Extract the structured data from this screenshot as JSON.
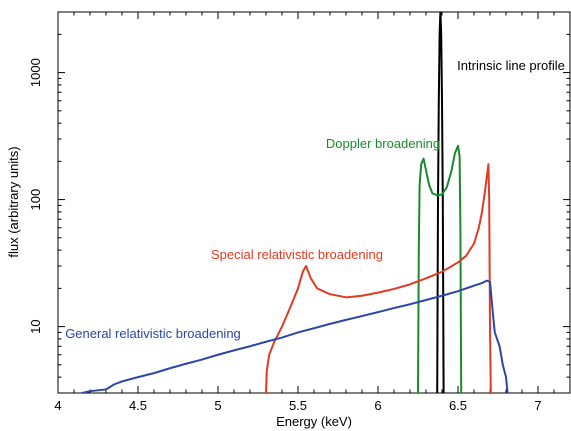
{
  "chart_data": {
    "type": "line",
    "title": "",
    "xlabel": "Energy (keV)",
    "ylabel": "flux (arbitrary units)",
    "xlim": [
      4,
      7.2
    ],
    "ylim": [
      3,
      3000
    ],
    "yscale": "log",
    "x_ticks": [
      4,
      4.5,
      5,
      5.5,
      6,
      6.5,
      7
    ],
    "x_tick_labels": [
      "4",
      "4.5",
      "5",
      "5.5",
      "6",
      "6.5",
      "7"
    ],
    "y_ticks": [
      10,
      100,
      1000
    ],
    "y_tick_labels": [
      "10",
      "100",
      "1000"
    ],
    "grid": false,
    "series": [
      {
        "name": "Intrinsic line profile",
        "color": "#000000",
        "label_pos": "upper-right",
        "points": [
          [
            6.37,
            3
          ],
          [
            6.375,
            100
          ],
          [
            6.38,
            600
          ],
          [
            6.385,
            2000
          ],
          [
            6.39,
            3000
          ],
          [
            6.395,
            2000
          ],
          [
            6.4,
            600
          ],
          [
            6.405,
            100
          ],
          [
            6.41,
            3
          ]
        ]
      },
      {
        "name": "Doppler broadening",
        "color": "#1a8a2e",
        "label_pos": "upper-center",
        "points": [
          [
            6.25,
            3
          ],
          [
            6.255,
            40
          ],
          [
            6.26,
            130
          ],
          [
            6.27,
            190
          ],
          [
            6.285,
            210
          ],
          [
            6.3,
            170
          ],
          [
            6.32,
            130
          ],
          [
            6.34,
            112
          ],
          [
            6.37,
            108
          ],
          [
            6.4,
            110
          ],
          [
            6.43,
            125
          ],
          [
            6.46,
            170
          ],
          [
            6.48,
            230
          ],
          [
            6.5,
            265
          ],
          [
            6.51,
            220
          ],
          [
            6.515,
            60
          ],
          [
            6.52,
            3
          ]
        ]
      },
      {
        "name": "Special relativistic broadening",
        "color": "#e23a22",
        "label_pos": "middle-left",
        "points": [
          [
            5.3,
            3
          ],
          [
            5.305,
            4.5
          ],
          [
            5.32,
            6
          ],
          [
            5.35,
            7.5
          ],
          [
            5.4,
            10
          ],
          [
            5.45,
            14
          ],
          [
            5.5,
            20
          ],
          [
            5.53,
            27
          ],
          [
            5.55,
            30
          ],
          [
            5.58,
            24
          ],
          [
            5.62,
            20
          ],
          [
            5.7,
            18
          ],
          [
            5.8,
            17
          ],
          [
            5.9,
            17.5
          ],
          [
            6.0,
            18.5
          ],
          [
            6.1,
            19.8
          ],
          [
            6.2,
            21.5
          ],
          [
            6.3,
            24
          ],
          [
            6.4,
            27
          ],
          [
            6.5,
            32
          ],
          [
            6.55,
            36
          ],
          [
            6.6,
            45
          ],
          [
            6.63,
            60
          ],
          [
            6.65,
            80
          ],
          [
            6.67,
            120
          ],
          [
            6.69,
            190
          ],
          [
            6.695,
            100
          ],
          [
            6.7,
            10
          ],
          [
            6.705,
            3
          ]
        ]
      },
      {
        "name": "General relativistic broadening",
        "color": "#2c46a8",
        "label_pos": "lower-left",
        "points": [
          [
            4.15,
            3
          ],
          [
            4.2,
            3.1
          ],
          [
            4.3,
            3.2
          ],
          [
            4.35,
            3.5
          ],
          [
            4.4,
            3.7
          ],
          [
            4.5,
            4
          ],
          [
            4.6,
            4.3
          ],
          [
            4.7,
            4.7
          ],
          [
            4.8,
            5.1
          ],
          [
            4.9,
            5.5
          ],
          [
            5.0,
            6
          ],
          [
            5.1,
            6.5
          ],
          [
            5.2,
            7
          ],
          [
            5.3,
            7.6
          ],
          [
            5.4,
            8.2
          ],
          [
            5.5,
            9
          ],
          [
            5.6,
            9.7
          ],
          [
            5.7,
            10.5
          ],
          [
            5.8,
            11.3
          ],
          [
            5.9,
            12.1
          ],
          [
            6.0,
            13
          ],
          [
            6.1,
            14
          ],
          [
            6.2,
            15
          ],
          [
            6.3,
            16.2
          ],
          [
            6.4,
            17.5
          ],
          [
            6.5,
            19
          ],
          [
            6.6,
            21
          ],
          [
            6.65,
            22
          ],
          [
            6.68,
            23
          ],
          [
            6.7,
            22.5
          ],
          [
            6.72,
            12
          ],
          [
            6.73,
            9
          ],
          [
            6.76,
            7
          ],
          [
            6.78,
            5
          ],
          [
            6.8,
            4
          ],
          [
            6.81,
            3
          ]
        ]
      }
    ]
  }
}
